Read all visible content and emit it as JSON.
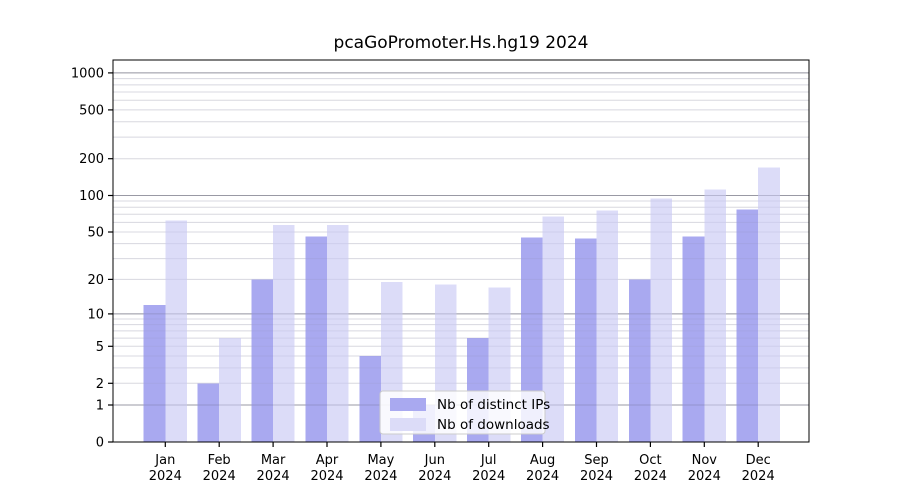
{
  "title": "pcaGoPromoter.Hs.hg19 2024",
  "chart_data": {
    "type": "bar",
    "title": "pcaGoPromoter.Hs.hg19 2024",
    "x_tick_months": [
      "Jan",
      "Feb",
      "Mar",
      "Apr",
      "May",
      "Jun",
      "Jul",
      "Aug",
      "Sep",
      "Oct",
      "Nov",
      "Dec"
    ],
    "x_tick_year": "2024",
    "series": [
      {
        "name": "Nb of distinct IPs",
        "color": "#a9a9f0",
        "values": [
          12,
          2,
          20,
          46,
          4,
          1,
          6,
          45,
          44,
          20,
          46,
          77
        ]
      },
      {
        "name": "Nb of downloads",
        "color": "#dcdcf8",
        "values": [
          62,
          6,
          57,
          57,
          19,
          18,
          17,
          67,
          75,
          94,
          112,
          170
        ]
      }
    ],
    "y_axis": {
      "scale": "log10(value+1)",
      "tick_labels": [
        "0",
        "1",
        "2",
        "5",
        "10",
        "20",
        "50",
        "100",
        "200",
        "500",
        "1000"
      ],
      "tick_values": [
        0,
        1,
        2,
        5,
        10,
        20,
        50,
        100,
        200,
        500,
        1000
      ],
      "major_gridline_values": [
        1,
        10,
        100,
        1000
      ],
      "minor_gridline_decades": [
        1,
        10,
        100
      ],
      "ylim": [
        0,
        1250
      ],
      "grid": true
    },
    "legend": {
      "position": "lower-center-inside",
      "labels": [
        "Nb of distinct IPs",
        "Nb of downloads"
      ]
    },
    "colors": {
      "background": "#ffffff",
      "frame": "#000000",
      "major_grid": "#b0b0b0",
      "minor_grid": "#e9e9e9",
      "legend_border": "#cccccc",
      "text": "#000000"
    }
  }
}
